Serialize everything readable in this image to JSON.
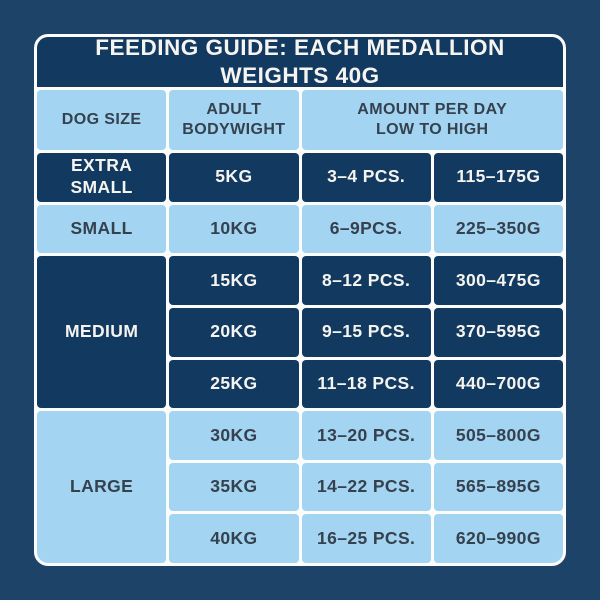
{
  "title": "FEEDING GUIDE: EACH MEDALLION WEIGHTS 40G",
  "colors": {
    "page_background": "#1E4368",
    "dark_cell": "#123A60",
    "light_cell": "#A3D5F2",
    "grid_lines": "#FCFCFC",
    "text_on_dark": "#F6F4F0",
    "text_on_light": "#35414E"
  },
  "header": {
    "dog_size": "DOG SIZE",
    "bodyweight_line1": "ADULT",
    "bodyweight_line2": "BODYWIGHT",
    "amount_line1": "AMOUNT PER DAY",
    "amount_line2": "LOW TO HIGH"
  },
  "groups": [
    {
      "size": "EXTRA SMALL",
      "theme": "dark",
      "rows": [
        {
          "weight": "5KG",
          "pieces": "3–4 PCS.",
          "grams": "115–175G"
        }
      ]
    },
    {
      "size": "SMALL",
      "theme": "light",
      "rows": [
        {
          "weight": "10KG",
          "pieces": "6–9PCS.",
          "grams": "225–350G"
        }
      ]
    },
    {
      "size": "MEDIUM",
      "theme": "dark",
      "rows": [
        {
          "weight": "15KG",
          "pieces": "8–12 PCS.",
          "grams": "300–475G"
        },
        {
          "weight": "20KG",
          "pieces": "9–15 PCS.",
          "grams": "370–595G"
        },
        {
          "weight": "25KG",
          "pieces": "11–18 PCS.",
          "grams": "440–700G"
        }
      ]
    },
    {
      "size": "LARGE",
      "theme": "light",
      "rows": [
        {
          "weight": "30KG",
          "pieces": "13–20 PCS.",
          "grams": "505–800G"
        },
        {
          "weight": "35KG",
          "pieces": "14–22 PCS.",
          "grams": "565–895G"
        },
        {
          "weight": "40KG",
          "pieces": "16–25 PCS.",
          "grams": "620–990G"
        }
      ]
    }
  ],
  "chart_data": {
    "type": "table",
    "title": "FEEDING GUIDE: EACH MEDALLION WEIGHTS 40G",
    "columns": [
      "DOG SIZE",
      "ADULT BODYWIGHT",
      "AMOUNT PER DAY LOW TO HIGH (PCS.)",
      "AMOUNT PER DAY LOW TO HIGH (G)"
    ],
    "rows": [
      [
        "EXTRA SMALL",
        "5KG",
        "3–4 PCS.",
        "115–175G"
      ],
      [
        "SMALL",
        "10KG",
        "6–9PCS.",
        "225–350G"
      ],
      [
        "MEDIUM",
        "15KG",
        "8–12 PCS.",
        "300–475G"
      ],
      [
        "MEDIUM",
        "20KG",
        "9–15 PCS.",
        "370–595G"
      ],
      [
        "MEDIUM",
        "25KG",
        "11–18 PCS.",
        "440–700G"
      ],
      [
        "LARGE",
        "30KG",
        "13–20 PCS.",
        "505–800G"
      ],
      [
        "LARGE",
        "35KG",
        "14–22 PCS.",
        "565–895G"
      ],
      [
        "LARGE",
        "40KG",
        "16–25 PCS.",
        "620–990G"
      ]
    ]
  }
}
